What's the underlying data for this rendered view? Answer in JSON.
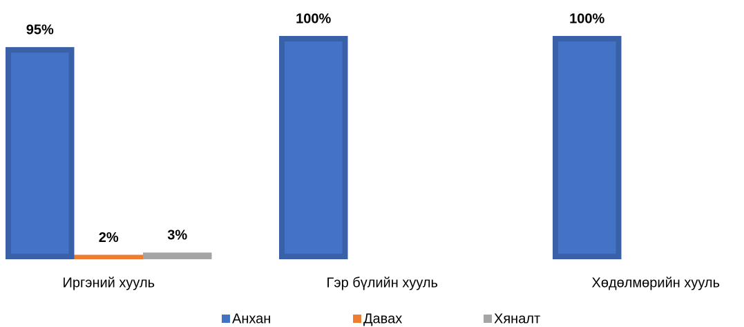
{
  "chart_data": {
    "type": "bar",
    "categories": [
      "Иргэний хууль",
      "Гэр бүлийн хууль",
      "Хөдөлмөрийн хууль"
    ],
    "series": [
      {
        "name": "Анхан",
        "color": "#4472c4",
        "values": [
          95,
          100,
          100
        ],
        "value_labels": [
          "95%",
          "100%",
          "100%"
        ]
      },
      {
        "name": "Давах",
        "color": "#ed7d31",
        "values": [
          2,
          null,
          null
        ],
        "value_labels": [
          "2%",
          null,
          null
        ]
      },
      {
        "name": "Хяналт",
        "color": "#a5a5a5",
        "values": [
          3,
          null,
          null
        ],
        "value_labels": [
          "3%",
          null,
          null
        ]
      }
    ],
    "ylim": [
      0,
      100
    ],
    "legend": "bottom"
  }
}
